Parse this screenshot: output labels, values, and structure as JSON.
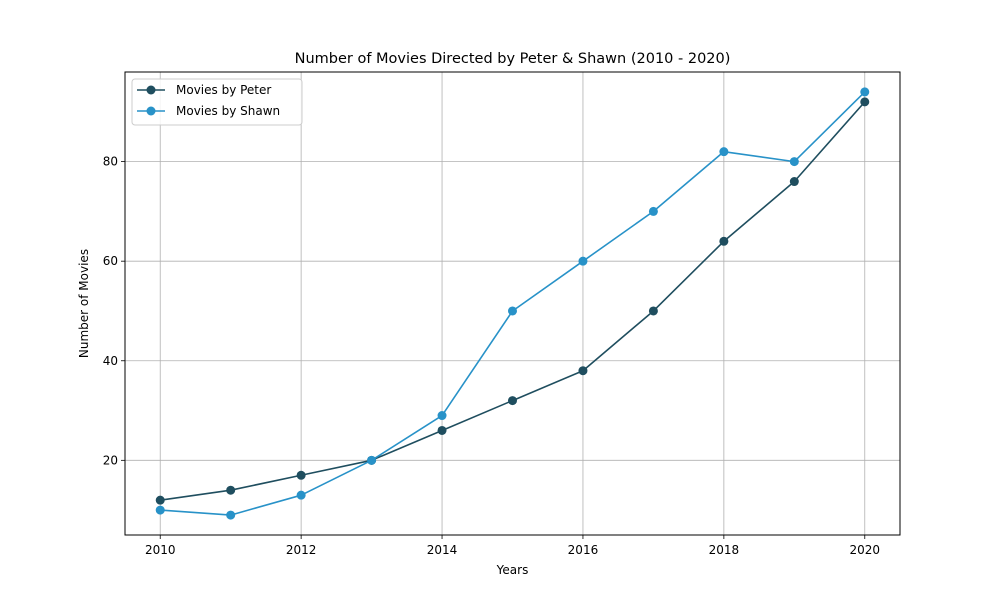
{
  "chart_data": {
    "type": "line",
    "title": "Number of Movies Directed by Peter & Shawn (2010 - 2020)",
    "xlabel": "Years",
    "ylabel": "Number of Movies",
    "x": [
      2010,
      2011,
      2012,
      2013,
      2014,
      2015,
      2016,
      2017,
      2018,
      2019,
      2020
    ],
    "xlim": [
      2009.5,
      2020.5
    ],
    "ylim": [
      5,
      98
    ],
    "xticks": [
      2010,
      2012,
      2014,
      2016,
      2018,
      2020
    ],
    "xtick_labels": [
      "2010",
      "2012",
      "2014",
      "2016",
      "2018",
      "2020"
    ],
    "yticks": [
      20,
      40,
      60,
      80
    ],
    "ytick_labels": [
      "20",
      "40",
      "60",
      "80"
    ],
    "grid": true,
    "legend_position": "top-left",
    "series": [
      {
        "name": "Movies by Peter",
        "color": "#1f4e5f",
        "marker": "circle",
        "values": [
          12,
          14,
          17,
          20,
          26,
          32,
          38,
          50,
          64,
          76,
          92
        ]
      },
      {
        "name": "Movies by Shawn",
        "color": "#2892c8",
        "marker": "circle",
        "values": [
          10,
          9,
          13,
          20,
          29,
          50,
          60,
          70,
          82,
          80,
          94
        ]
      }
    ]
  }
}
